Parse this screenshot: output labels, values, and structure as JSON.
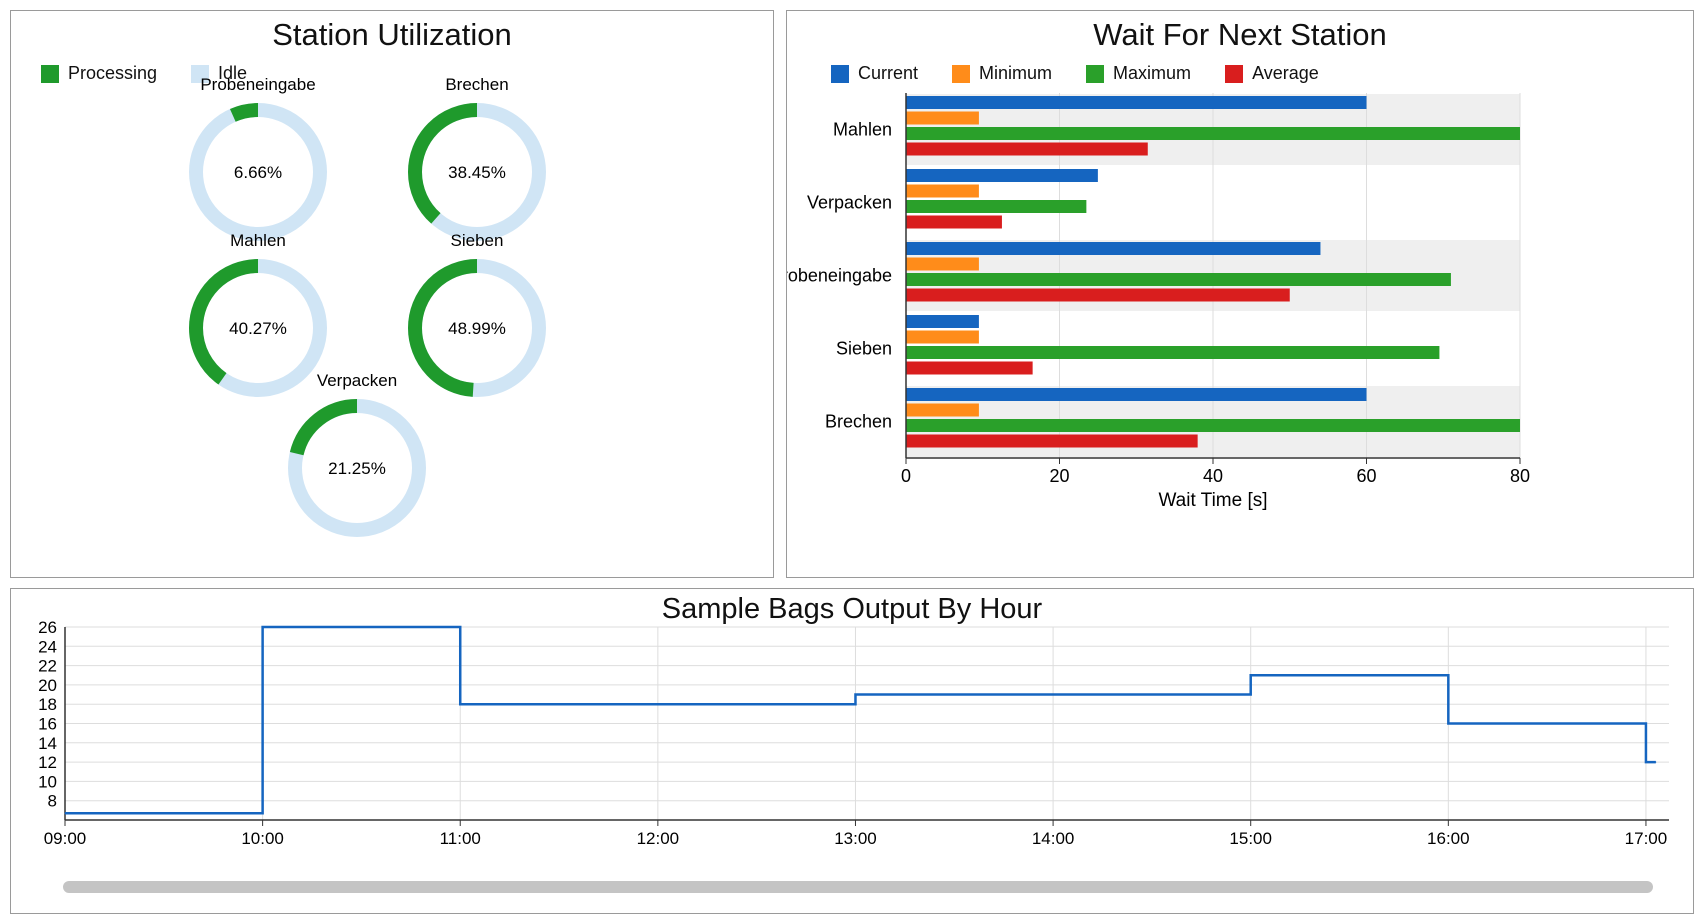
{
  "colors": {
    "processing": "#1f9a2c",
    "idle": "#d0e5f5",
    "current": "#1565c0",
    "minimum": "#ff8c1a",
    "maximum": "#2aa02a",
    "average": "#d91e1e",
    "line": "#1565c0",
    "band": "#efefef",
    "grid": "#dddddd"
  },
  "utilization": {
    "title": "Station Utilization",
    "legend": [
      {
        "label": "Processing",
        "color": "#1f9a2c"
      },
      {
        "label": "Idle",
        "color": "#d0e5f5"
      }
    ],
    "chart_data": {
      "type": "pie",
      "stations": [
        {
          "name": "Probeneingabe",
          "percent": 6.66,
          "label": "6.66%"
        },
        {
          "name": "Brechen",
          "percent": 38.45,
          "label": "38.45%"
        },
        {
          "name": "Mahlen",
          "percent": 40.27,
          "label": "40.27%"
        },
        {
          "name": "Sieben",
          "percent": 48.99,
          "label": "48.99%"
        },
        {
          "name": "Verpacken",
          "percent": 21.25,
          "label": "21.25%"
        }
      ]
    }
  },
  "wait": {
    "title": "Wait For Next Station",
    "legend": [
      {
        "label": "Current",
        "color": "#1565c0"
      },
      {
        "label": "Minimum",
        "color": "#ff8c1a"
      },
      {
        "label": "Maximum",
        "color": "#2aa02a"
      },
      {
        "label": "Average",
        "color": "#d91e1e"
      }
    ],
    "chart_data": {
      "type": "bar",
      "orientation": "horizontal",
      "categories": [
        "Mahlen",
        "Verpacken",
        "Probeneingabe",
        "Sieben",
        "Brechen"
      ],
      "series": [
        {
          "name": "Current",
          "values": [
            60,
            25,
            54,
            9.5,
            60
          ]
        },
        {
          "name": "Minimum",
          "values": [
            9.5,
            9.5,
            9.5,
            9.5,
            9.5
          ]
        },
        {
          "name": "Maximum",
          "values": [
            80,
            23.5,
            71,
            69.5,
            80
          ]
        },
        {
          "name": "Average",
          "values": [
            31.5,
            12.5,
            50,
            16.5,
            38
          ]
        }
      ],
      "xlabel": "Wait Time [s]",
      "xlim": [
        0,
        80
      ],
      "xticks": [
        0,
        20,
        40,
        60,
        80
      ]
    }
  },
  "bags": {
    "title": "Sample Bags Output By Hour",
    "chart_data": {
      "type": "line",
      "step": true,
      "x": [
        "09:00",
        "10:00",
        "11:00",
        "13:00",
        "15:00",
        "16:00",
        "17:00",
        "17:03"
      ],
      "y": [
        6.7,
        26,
        18,
        19,
        21,
        16,
        12,
        12
      ],
      "xticks": [
        "09:00",
        "10:00",
        "11:00",
        "12:00",
        "13:00",
        "14:00",
        "15:00",
        "16:00",
        "17:00"
      ],
      "yticks": [
        8,
        10,
        12,
        14,
        16,
        18,
        20,
        22,
        24,
        26
      ],
      "ylim": [
        6,
        26
      ],
      "xlim": [
        "09:00",
        "17:07"
      ]
    }
  }
}
